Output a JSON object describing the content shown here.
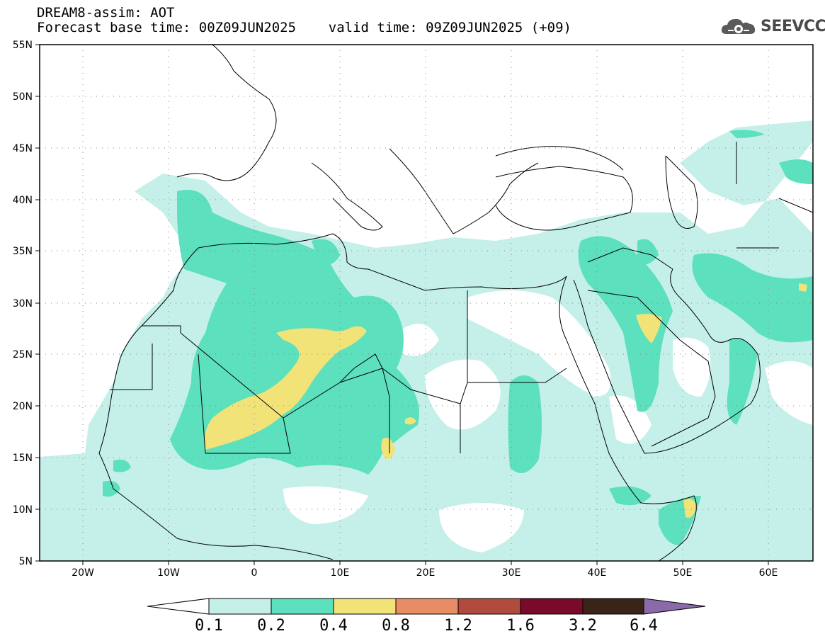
{
  "header": {
    "line1": "DREAM8-assim: AOT",
    "line2": "Forecast base time: 00Z09JUN2025    valid time: 09Z09JUN2025 (+09)"
  },
  "logo": {
    "icon": "cloud-gear-icon",
    "text": "SEEVCCC"
  },
  "map": {
    "lat_labels": [
      "55N",
      "50N",
      "45N",
      "40N",
      "35N",
      "30N",
      "25N",
      "20N",
      "15N",
      "10N",
      "5N"
    ],
    "lon_labels": [
      "20W",
      "10W",
      "0",
      "10E",
      "20E",
      "30E",
      "40E",
      "50E",
      "60E"
    ]
  },
  "colorbar": {
    "labels": [
      "0.1",
      "0.2",
      "0.4",
      "0.8",
      "1.2",
      "1.6",
      "3.2",
      "6.4"
    ],
    "colors": [
      "#c4f0e9",
      "#5ce0bd",
      "#f2e378",
      "#e88c66",
      "#b04b3e",
      "#7a0a2a",
      "#3a2418",
      "#8a6aa8"
    ]
  }
}
